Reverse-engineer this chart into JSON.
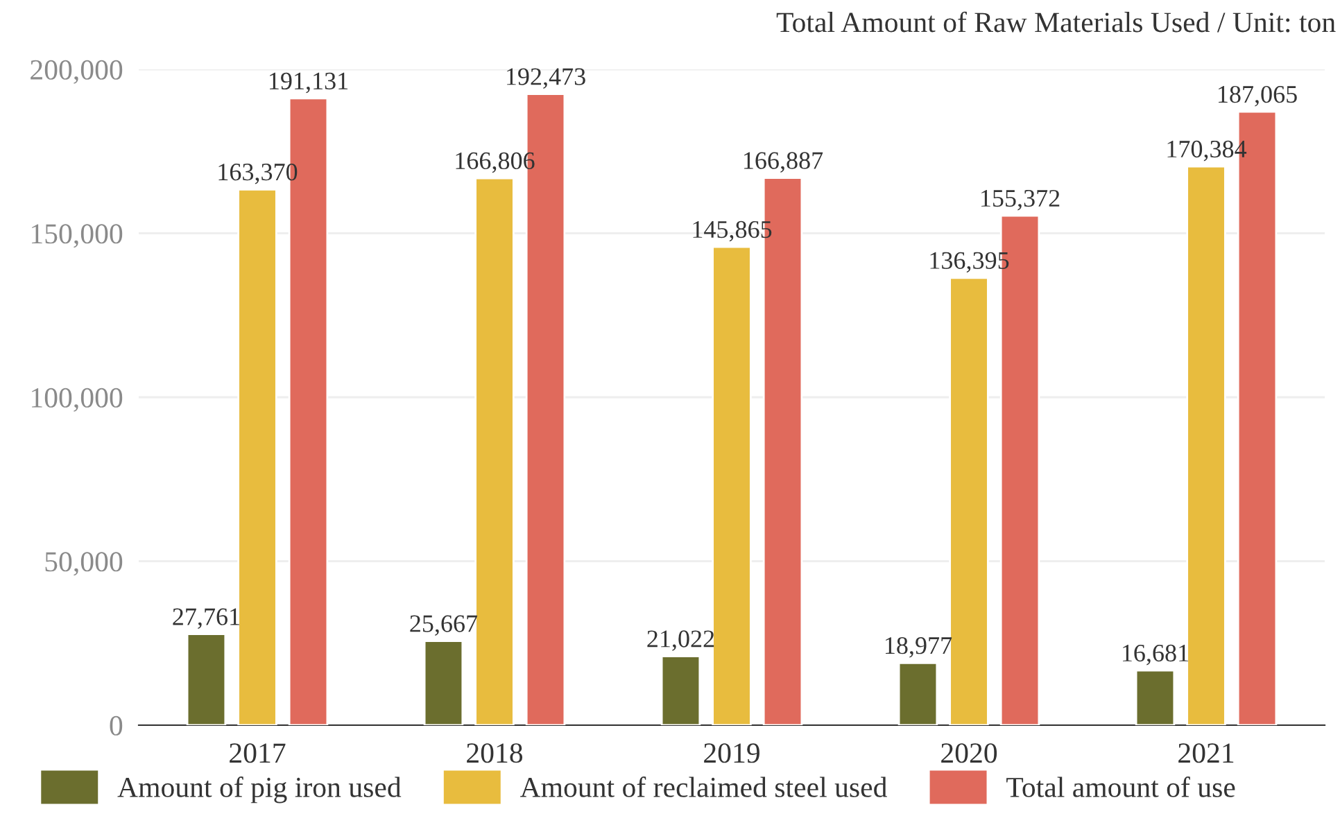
{
  "chart_data": {
    "type": "bar",
    "title": "Total Amount of Raw Materials Used / Unit: ton",
    "categories": [
      "2017",
      "2018",
      "2019",
      "2020",
      "2021"
    ],
    "series": [
      {
        "name": "Amount of pig iron used",
        "color": "#6b6e2e",
        "values": [
          27761,
          25667,
          21022,
          18977,
          16681
        ],
        "value_labels": [
          "27,761",
          "25,667",
          "21,022",
          "18,977",
          "16,681"
        ]
      },
      {
        "name": "Amount of reclaimed steel used",
        "color": "#e8bc3e",
        "values": [
          163370,
          166806,
          145865,
          136395,
          170384
        ],
        "value_labels": [
          "163,370",
          "166,806",
          "145,865",
          "136,395",
          "170,384"
        ]
      },
      {
        "name": "Total amount of use",
        "color": "#e06a5c",
        "values": [
          191131,
          192473,
          166887,
          155372,
          187065
        ],
        "value_labels": [
          "191,131",
          "192,473",
          "166,887",
          "155,372",
          "187,065"
        ]
      }
    ],
    "ylim": [
      0,
      200000
    ],
    "yticks": [
      {
        "value": 0,
        "label": "0"
      },
      {
        "value": 50000,
        "label": "50,000"
      },
      {
        "value": 100000,
        "label": "100,000"
      },
      {
        "value": 150000,
        "label": "150,000"
      },
      {
        "value": 200000,
        "label": "200,000"
      }
    ],
    "grid": "y",
    "legend": "bottom"
  }
}
